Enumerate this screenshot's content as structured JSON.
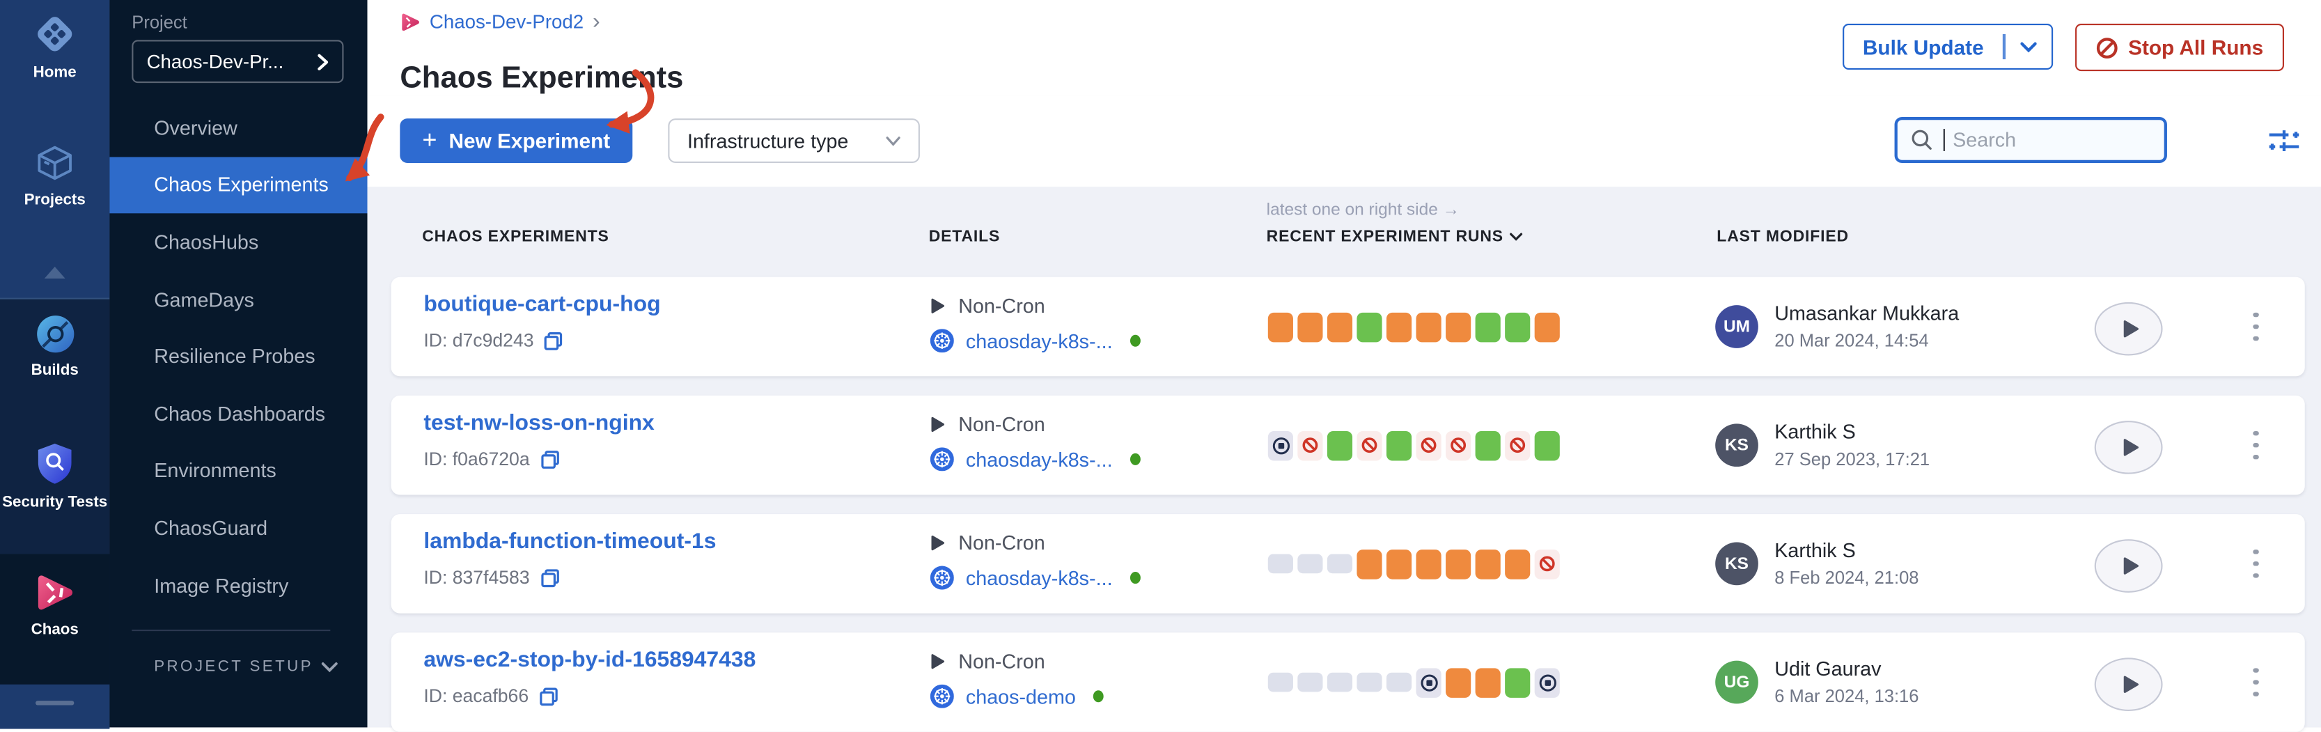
{
  "rail": {
    "items": [
      {
        "label": "Home",
        "icon": "home-icon",
        "active": false
      },
      {
        "label": "Projects",
        "icon": "cube-icon",
        "active": false
      },
      {
        "label": "Builds",
        "icon": "builds-icon",
        "active": false
      },
      {
        "label": "Security Tests",
        "icon": "security-shield-icon",
        "active": false
      },
      {
        "label": "Chaos",
        "icon": "chaos-pinwheel-icon",
        "active": true
      }
    ]
  },
  "sidebar": {
    "section_label": "Project",
    "project_selector": "Chaos-Dev-Pr...",
    "items": [
      {
        "label": "Overview",
        "active": false
      },
      {
        "label": "Chaos Experiments",
        "active": true
      },
      {
        "label": "ChaosHubs",
        "active": false
      },
      {
        "label": "GameDays",
        "active": false
      },
      {
        "label": "Resilience Probes",
        "active": false
      },
      {
        "label": "Chaos Dashboards",
        "active": false
      },
      {
        "label": "Environments",
        "active": false
      },
      {
        "label": "ChaosGuard",
        "active": false
      },
      {
        "label": "Image Registry",
        "active": false
      }
    ],
    "project_setup_label": "PROJECT SETUP"
  },
  "header": {
    "breadcrumb_project": "Chaos-Dev-Prod2",
    "breadcrumb_separator": "›",
    "title": "Chaos Experiments",
    "bulk_update_label": "Bulk Update",
    "stop_all_label": "Stop All Runs"
  },
  "toolbar": {
    "plus_icon": "+",
    "new_experiment_label": "New Experiment",
    "infrastructure_filter_label": "Infrastructure type",
    "search_placeholder": "Search"
  },
  "table": {
    "annotation": "latest one on right side →",
    "columns": [
      "CHAOS EXPERIMENTS",
      "DETAILS",
      "RECENT EXPERIMENT RUNS",
      "LAST MODIFIED"
    ],
    "id_prefix": "ID:",
    "rows": [
      {
        "name": "boutique-cart-cpu-hog",
        "id": "d7c9d243",
        "cron": "Non-Cron",
        "infra": "chaosday-k8s-...",
        "runs": [
          "running",
          "running",
          "running",
          "success",
          "running",
          "running",
          "running",
          "success",
          "success",
          "running"
        ],
        "modified_by": "Umasankar Mukkara",
        "initials": "UM",
        "avatar_color": "#3f4c9c",
        "date": "20 Mar 2024, 14:54"
      },
      {
        "name": "test-nw-loss-on-nginx",
        "id": "f0a6720a",
        "cron": "Non-Cron",
        "infra": "chaosday-k8s-...",
        "runs": [
          "stopped",
          "failed",
          "success",
          "failed",
          "success",
          "failed",
          "failed",
          "success",
          "failed",
          "success"
        ],
        "modified_by": "Karthik S",
        "initials": "KS",
        "avatar_color": "#4d5366",
        "date": "27 Sep 2023, 17:21"
      },
      {
        "name": "lambda-function-timeout-1s",
        "id": "837f4583",
        "cron": "Non-Cron",
        "infra": "chaosday-k8s-...",
        "runs": [
          "na",
          "na",
          "na",
          "running",
          "running",
          "running",
          "running",
          "running",
          "running",
          "failed"
        ],
        "modified_by": "Karthik S",
        "initials": "KS",
        "avatar_color": "#4d5366",
        "date": "8 Feb 2024, 21:08"
      },
      {
        "name": "aws-ec2-stop-by-id-1658947438",
        "id": "eacafb66",
        "cron": "Non-Cron",
        "infra": "chaos-demo",
        "runs": [
          "na",
          "na",
          "na",
          "na",
          "na",
          "stopped",
          "running",
          "running",
          "success",
          "stopped"
        ],
        "modified_by": "Udit Gaurav",
        "initials": "UG",
        "avatar_color": "#57a85a",
        "date": "6 Mar 2024, 13:16"
      }
    ]
  },
  "colors": {
    "accent_blue": "#2e6bd1",
    "link_blue": "#2f6bd0",
    "danger_red": "#b93226",
    "annotation_arrow_red": "#d8432a",
    "run_running_orange": "#ef8a3e",
    "run_success_green": "#6bc14f",
    "run_failed_red": "#cf3527",
    "run_na_gray": "#dde0eb",
    "sidebar_dark": "#07182b",
    "rail_blue": "#1d3b6e",
    "active_menu_blue": "#2e6bca",
    "infra_status_green": "#3f9a22"
  }
}
